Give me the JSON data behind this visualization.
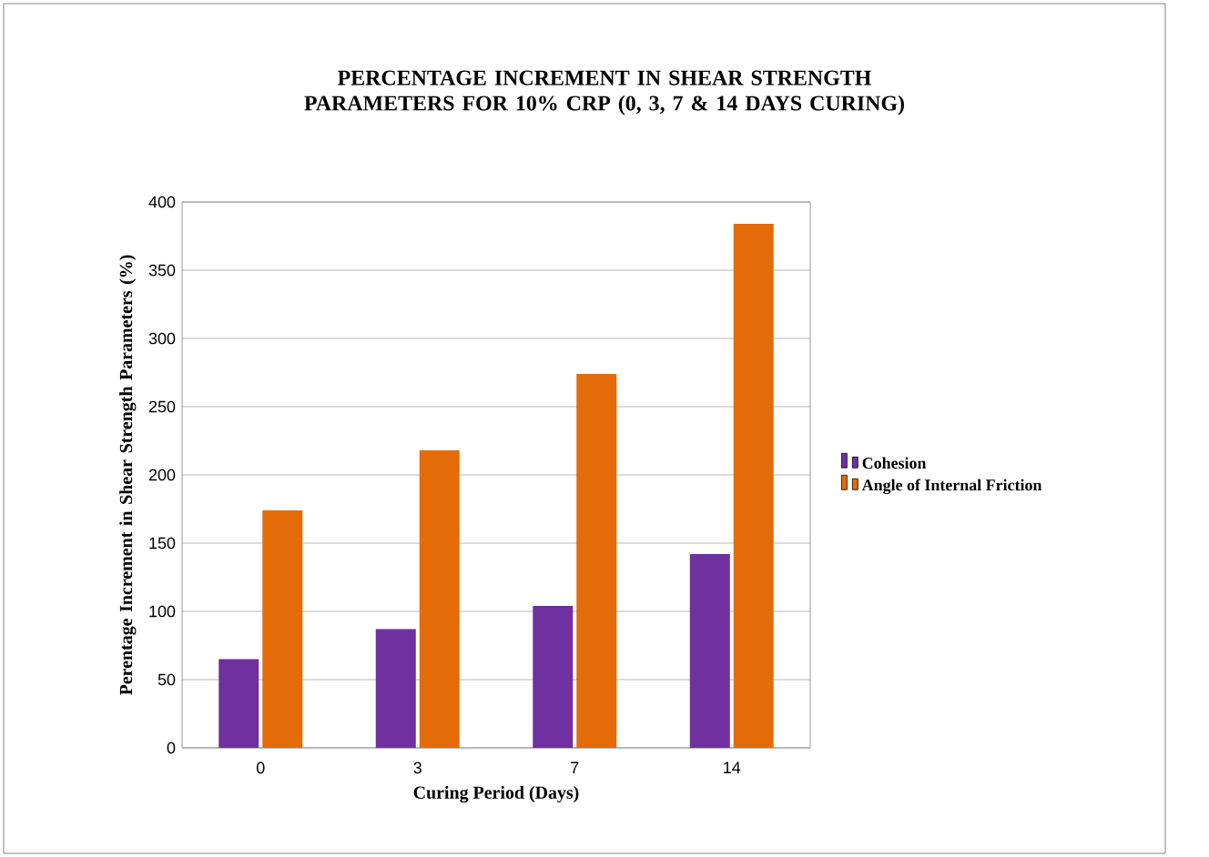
{
  "chart_data": {
    "type": "bar",
    "title": "PERCENTAGE INCREMENT IN SHEAR STRENGTH PARAMETERS FOR 10% CRP (0, 3, 7 & 14 DAYS CURING)",
    "xlabel": "Curing Period (Days)",
    "ylabel": "Perentage Increment in Shear Strength Parameters (%)",
    "categories": [
      "0",
      "3",
      "7",
      "14"
    ],
    "series": [
      {
        "name": "Cohesion",
        "color": "#7030a0",
        "values": [
          65,
          87,
          104,
          142
        ]
      },
      {
        "name": "Angle of Internal Friction",
        "color": "#e36c09",
        "values": [
          174,
          218,
          274,
          384
        ]
      }
    ],
    "ylim": [
      0,
      400
    ],
    "yticks": [
      0,
      50,
      100,
      150,
      200,
      250,
      300,
      350,
      400
    ],
    "grid": "y",
    "legend": "right"
  }
}
